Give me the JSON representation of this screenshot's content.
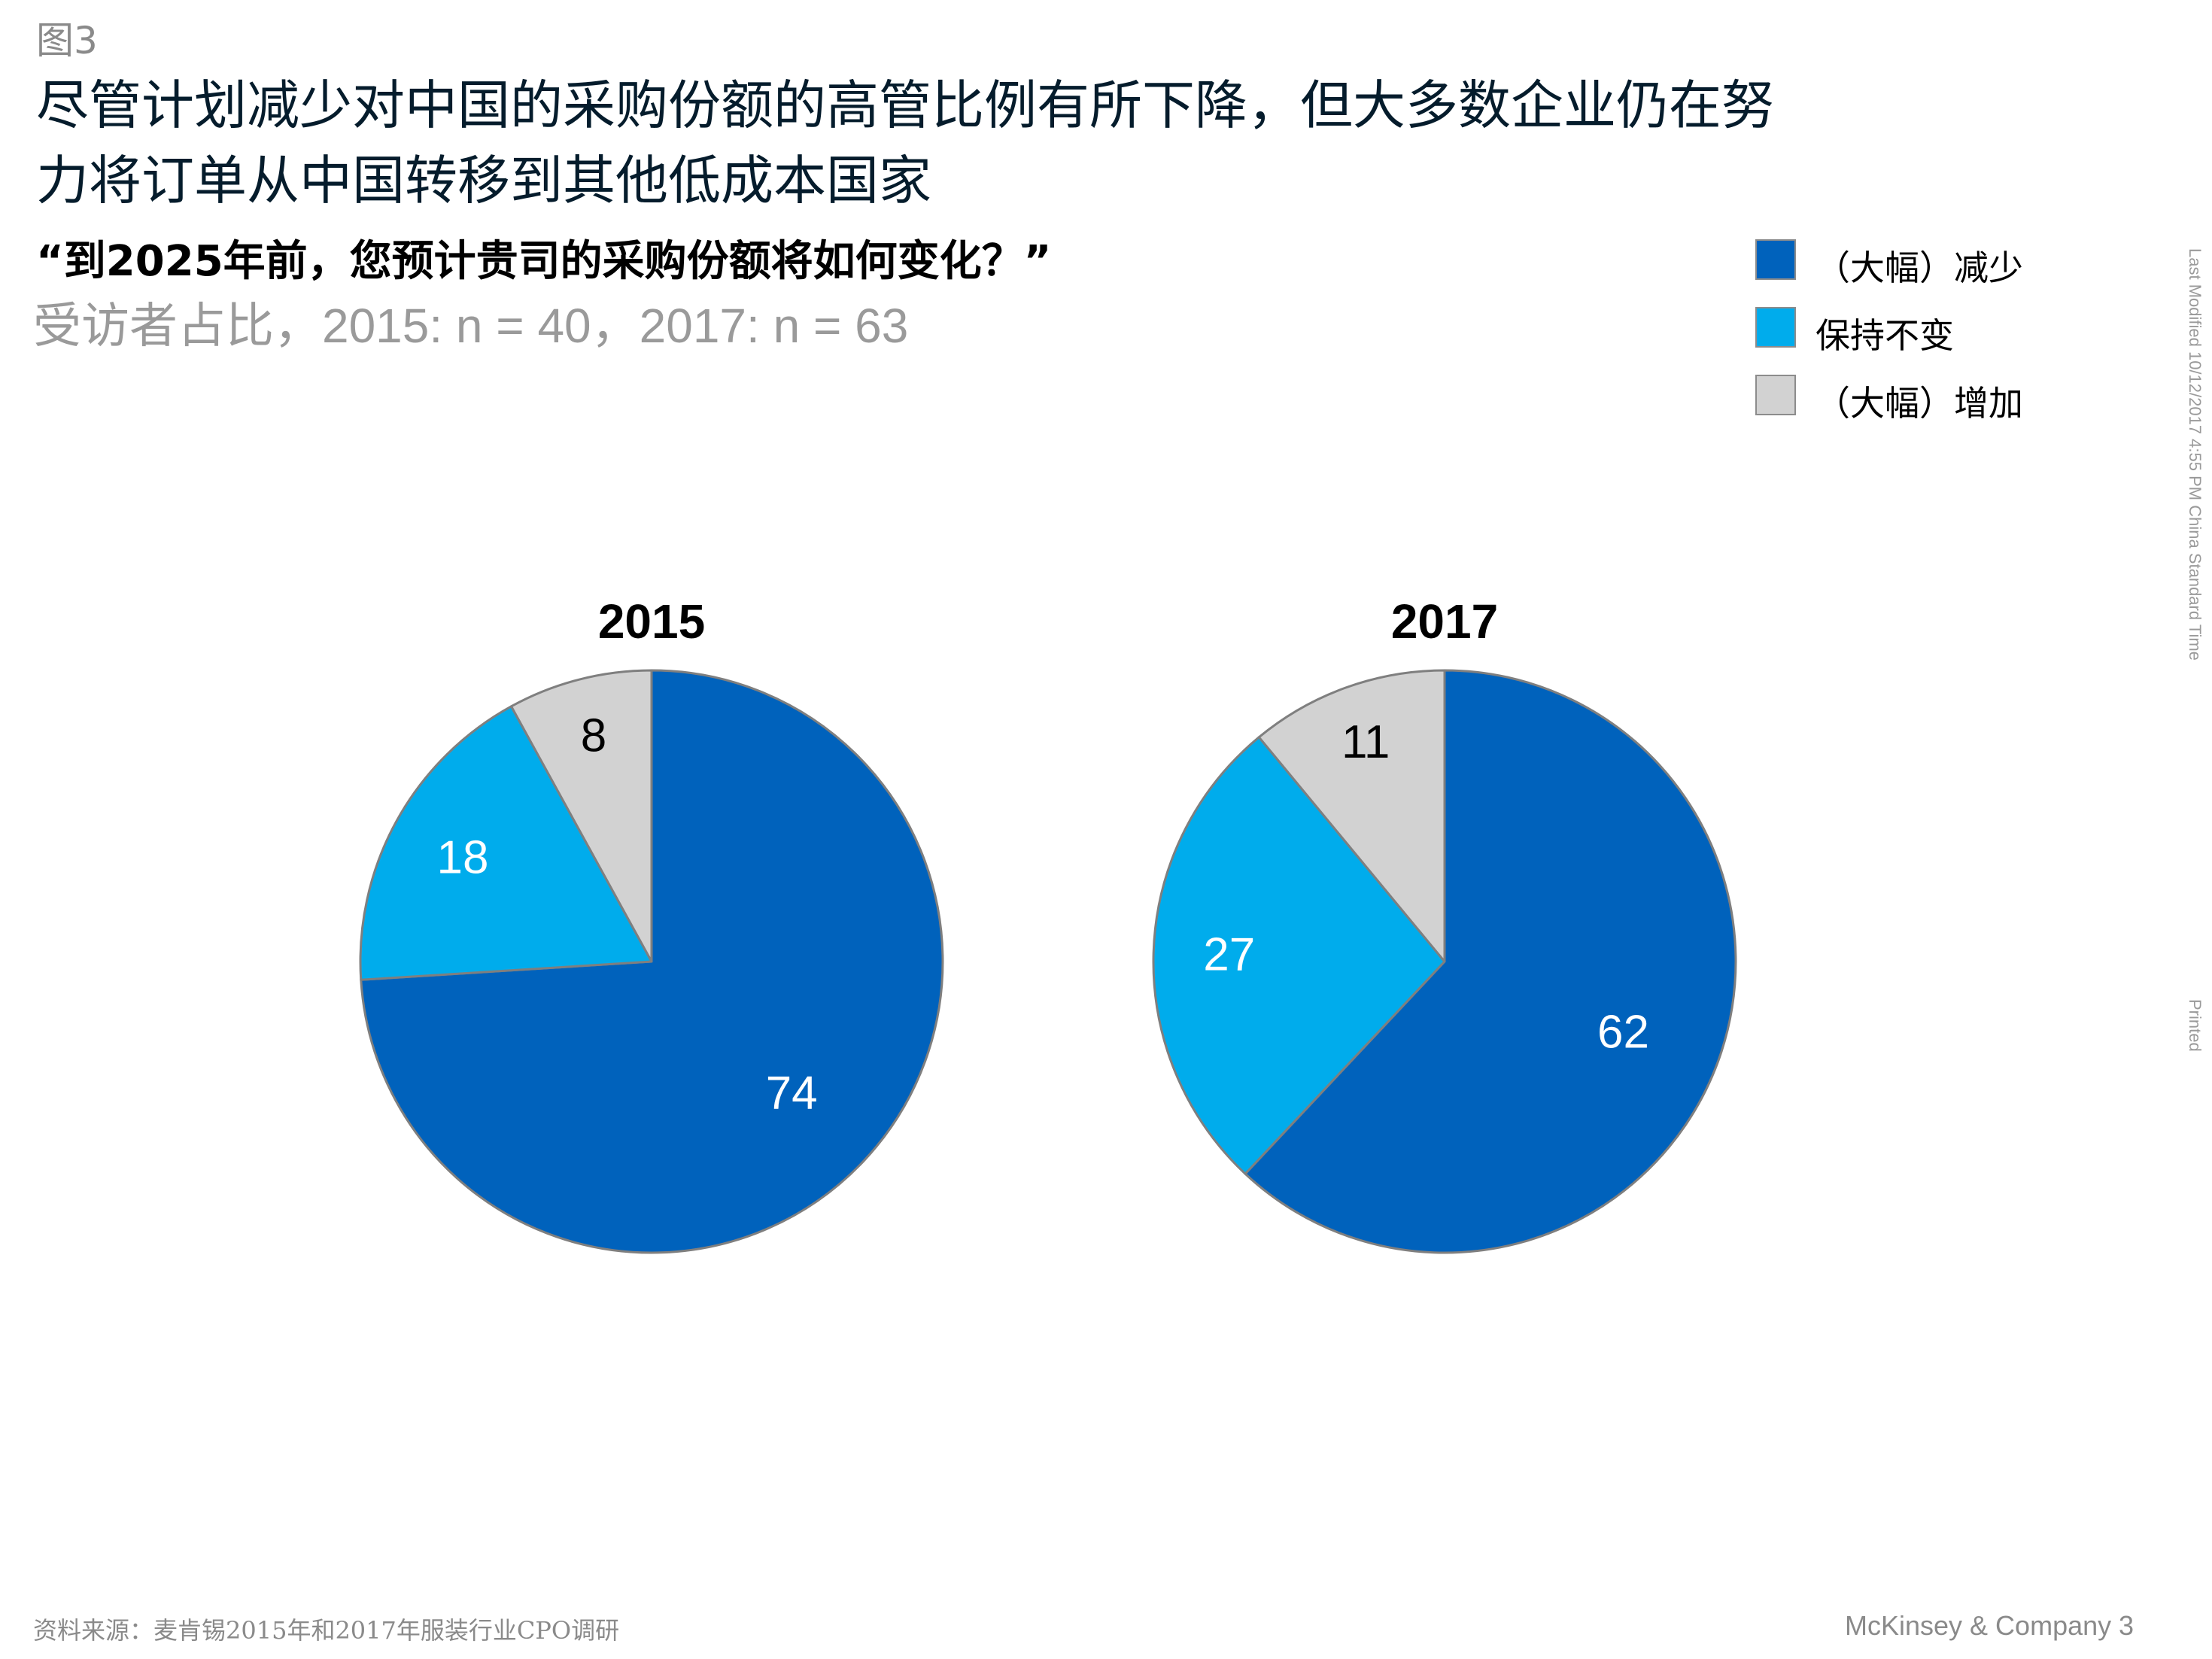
{
  "figure_label": "图3",
  "headline": {
    "line1": "尽管计划减少对中国的采购份额的高管比例有所下降，但大多数企业仍在努",
    "line2": "力将订单从中国转移到其他低成本国家"
  },
  "question": "“到2025年前，您预计贵司的采购份额将如何变化？”",
  "subtitle": "受访者占比，2015: n = 40，2017: n = 63",
  "side_notes": {
    "last_modified": "Last Modified 10/12/2017 4:55 PM China Standard Time",
    "printed": "Printed"
  },
  "footer": {
    "source": "资料来源：麦肯锡2015年和2017年服装行业CPO调研",
    "company": "McKinsey & Company",
    "page_number": "3"
  },
  "chart_data": [
    {
      "type": "pie",
      "title": "2015",
      "slices": [
        {
          "name": "（大幅）减少",
          "value": 74,
          "label": "74",
          "color": "#0062bc",
          "label_color": "#ffffff"
        },
        {
          "name": "保持不变",
          "value": 18,
          "label": "18",
          "color": "#00acec",
          "label_color": "#ffffff"
        },
        {
          "name": "（大幅）增加",
          "value": 8,
          "label": "8",
          "color": "#d2d2d2",
          "label_color": "#000000"
        }
      ],
      "legend": "top-right"
    },
    {
      "type": "pie",
      "title": "2017",
      "slices": [
        {
          "name": "（大幅）减少",
          "value": 62,
          "label": "62",
          "color": "#0062bc",
          "label_color": "#ffffff"
        },
        {
          "name": "保持不变",
          "value": 27,
          "label": "27",
          "color": "#00acec",
          "label_color": "#ffffff"
        },
        {
          "name": "（大幅）增加",
          "value": 11,
          "label": "11",
          "color": "#d2d2d2",
          "label_color": "#000000"
        }
      ],
      "legend": "top-right"
    }
  ],
  "legend": {
    "items": [
      {
        "label": "（大幅）减少",
        "color": "#0062bc"
      },
      {
        "label": "保持不变",
        "color": "#00acec"
      },
      {
        "label": "（大幅）增加",
        "color": "#d2d2d2"
      }
    ]
  }
}
